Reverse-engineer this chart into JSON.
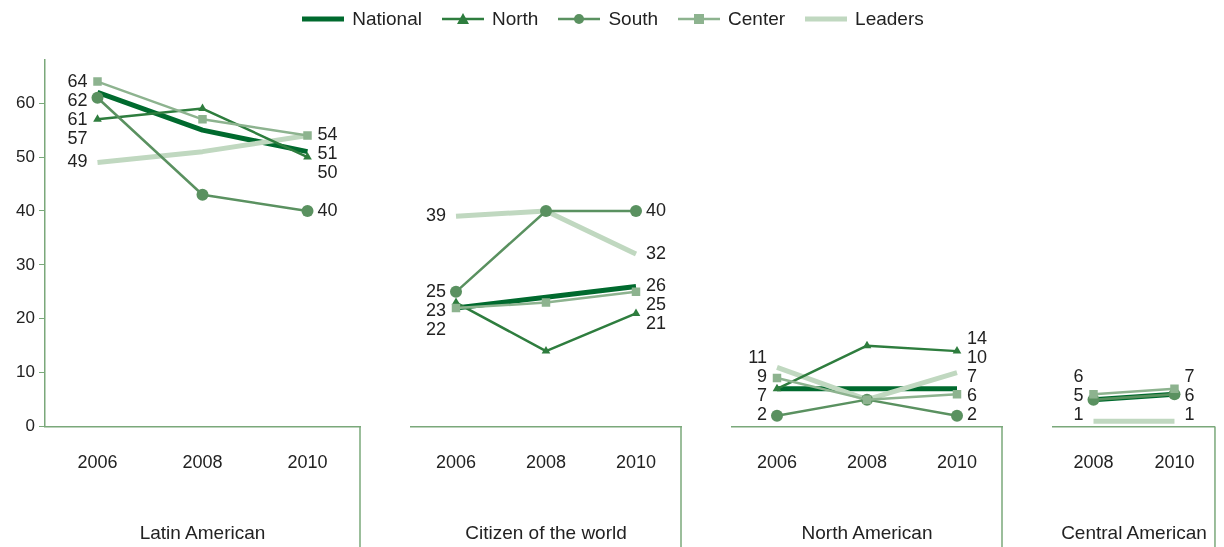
{
  "chart_data": [
    {
      "type": "line",
      "xlabel": "Latin American",
      "categories": [
        "2006",
        "2008",
        "2010"
      ],
      "ylim": [
        0,
        68
      ],
      "yticks": [
        0,
        10,
        20,
        30,
        40,
        50,
        60
      ],
      "grid": false,
      "legend": "top",
      "series": [
        {
          "name": "National",
          "color": "#006a2e",
          "marker": "none",
          "values": [
            62,
            55,
            51
          ],
          "value_labels": [
            "62",
            null,
            "51"
          ]
        },
        {
          "name": "North",
          "color": "#2e7d3e",
          "marker": "triangle",
          "values": [
            57,
            59,
            50
          ],
          "value_labels": [
            "57",
            null,
            "50"
          ]
        },
        {
          "name": "South",
          "color": "#5a9160",
          "marker": "circle",
          "values": [
            61,
            43,
            40
          ],
          "value_labels": [
            "61",
            null,
            "40"
          ]
        },
        {
          "name": "Center",
          "color": "#8db38f",
          "marker": "square",
          "values": [
            64,
            57,
            54
          ],
          "value_labels": [
            "64",
            null,
            "54"
          ]
        },
        {
          "name": "Leaders",
          "color": "#c0d8c0",
          "marker": "none",
          "values": [
            49,
            51,
            54
          ],
          "value_labels": [
            "49",
            null,
            null
          ]
        }
      ]
    },
    {
      "type": "line",
      "xlabel": "Citizen of the world",
      "categories": [
        "2006",
        "2008",
        "2010"
      ],
      "tick_labels": "x",
      "grid": false,
      "series": [
        {
          "color": "#006a2e",
          "marker": "none",
          "values": [
            22,
            24,
            26
          ],
          "value_labels": [
            null,
            null,
            "26"
          ]
        },
        {
          "color": "#2e7d3e",
          "marker": "triangle",
          "values": [
            23,
            14,
            21
          ],
          "value_labels": [
            "23",
            null,
            "21"
          ]
        },
        {
          "color": "#5a9160",
          "marker": "circle",
          "values": [
            25,
            40,
            40
          ],
          "value_labels": [
            "25",
            null,
            "40"
          ]
        },
        {
          "color": "#8db38f",
          "marker": "square",
          "values": [
            22,
            23,
            25
          ],
          "value_labels": [
            "22",
            null,
            "25"
          ]
        },
        {
          "color": "#c0d8c0",
          "marker": "none",
          "values": [
            39,
            40,
            32
          ],
          "value_labels": [
            "39",
            null,
            "32"
          ]
        }
      ]
    },
    {
      "type": "line",
      "xlabel": "North American",
      "categories": [
        "2006",
        "2008",
        "2010"
      ],
      "tick_labels": "x",
      "grid": false,
      "series": [
        {
          "color": "#006a2e",
          "marker": "none",
          "values": [
            7,
            7,
            7
          ],
          "value_labels": [
            null,
            null,
            "7"
          ]
        },
        {
          "color": "#2e7d3e",
          "marker": "triangle",
          "values": [
            7,
            15,
            14
          ],
          "value_labels": [
            "7",
            null,
            "14"
          ]
        },
        {
          "color": "#5a9160",
          "marker": "circle",
          "values": [
            2,
            5,
            2
          ],
          "value_labels": [
            "2",
            null,
            "2"
          ]
        },
        {
          "color": "#8db38f",
          "marker": "square",
          "values": [
            9,
            5,
            6
          ],
          "value_labels": [
            "9",
            null,
            "6"
          ]
        },
        {
          "color": "#c0d8c0",
          "marker": "none",
          "values": [
            11,
            5,
            10
          ],
          "value_labels": [
            "11",
            null,
            "10"
          ]
        }
      ]
    },
    {
      "type": "line",
      "xlabel": "Central American",
      "categories": [
        "2008",
        "2010"
      ],
      "tick_labels": "x",
      "grid": false,
      "series": [
        {
          "color": "#006a2e",
          "marker": "none",
          "values": [
            5,
            6
          ],
          "value_labels": [
            null,
            null
          ]
        },
        {
          "color": "#2e7d3e",
          "marker": "triangle",
          "values": [
            5,
            6
          ],
          "value_labels": [
            "5",
            null
          ]
        },
        {
          "color": "#5a9160",
          "marker": "circle",
          "values": [
            5,
            6
          ],
          "value_labels": [
            null,
            "6"
          ]
        },
        {
          "color": "#8db38f",
          "marker": "square",
          "values": [
            6,
            7
          ],
          "value_labels": [
            "6",
            "7"
          ]
        },
        {
          "color": "#c0d8c0",
          "marker": "none",
          "values": [
            1,
            1
          ],
          "value_labels": [
            "1",
            "1"
          ]
        }
      ]
    }
  ]
}
